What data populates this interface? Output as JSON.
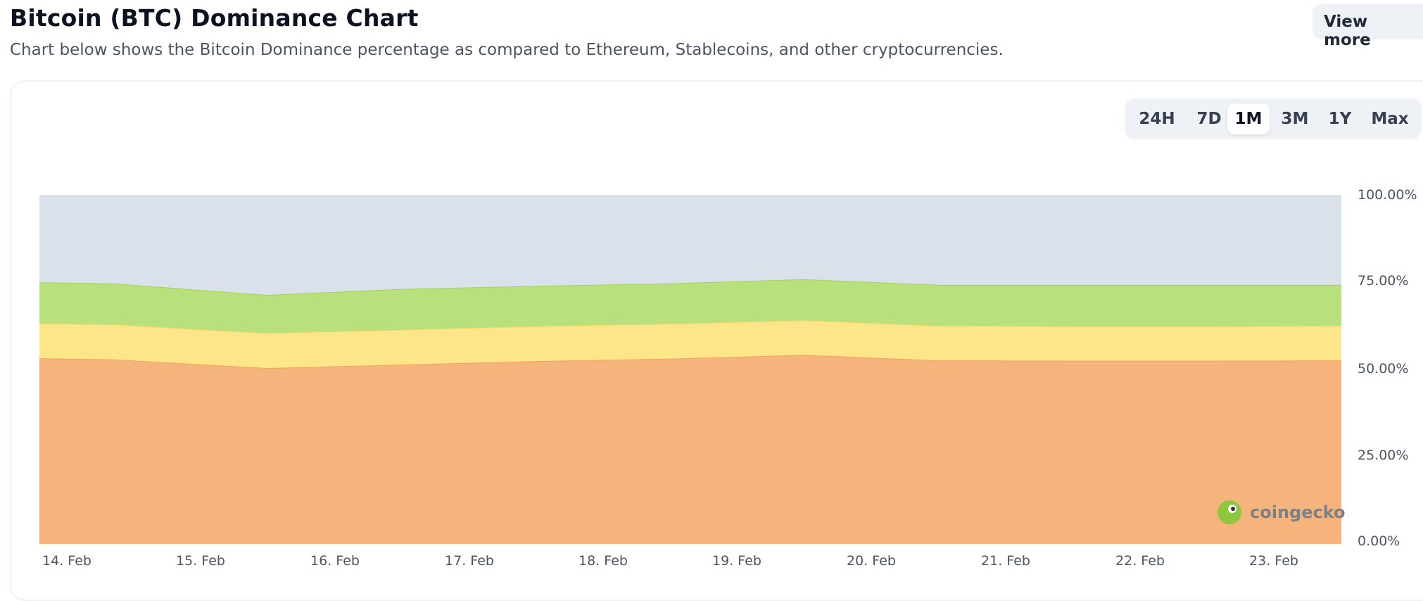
{
  "header": {
    "title": "Bitcoin (BTC) Dominance Chart",
    "subtitle": "Chart below shows the Bitcoin Dominance percentage as compared to Ethereum, Stablecoins, and other cryptocurrencies.",
    "view_more_label": "View more",
    "view_more_icon": "external-link-icon"
  },
  "range_selector": {
    "options": [
      "24H",
      "7D",
      "1M",
      "3M",
      "1Y",
      "Max"
    ],
    "selected": "1M"
  },
  "watermark": {
    "text": "coingecko",
    "icon": "coingecko-logo-icon"
  },
  "chart_data": {
    "type": "area",
    "stacked": true,
    "x_tick_labels": [
      "14. Feb",
      "15. Feb",
      "16. Feb",
      "17. Feb",
      "18. Feb",
      "19. Feb",
      "20. Feb",
      "21. Feb",
      "22. Feb",
      "23. Feb"
    ],
    "x_range": [
      "14. Feb",
      "23. Feb"
    ],
    "x": [
      "14. Feb",
      "14. Feb",
      "15. Feb",
      "16. Feb",
      "17. Feb",
      "18. Feb",
      "19. Feb",
      "20. Feb",
      "21. Feb",
      "22. Feb",
      "23. Feb",
      "23. Feb"
    ],
    "y_tick_labels": [
      "0.00%",
      "25.00%",
      "50.00%",
      "75.00%",
      "100.00%"
    ],
    "ylim": [
      0,
      100
    ],
    "grid": false,
    "legend": "none",
    "series": [
      {
        "color": "#f4b47c",
        "line_color": "#f2a35f",
        "values": [
          53.3,
          53.0,
          50.5,
          51.5,
          52.5,
          53.2,
          54.3,
          52.7,
          52.6,
          52.6,
          52.7,
          52.8
        ]
      },
      {
        "color": "#fde68a",
        "line_color": "#f8d96a",
        "values": [
          10.0,
          10.0,
          10.0,
          10.0,
          10.0,
          10.0,
          9.9,
          9.9,
          9.9,
          9.9,
          9.9,
          9.9
        ]
      },
      {
        "color": "#b8e07c",
        "line_color": "#9ed35e",
        "values": [
          11.8,
          11.8,
          11.0,
          11.7,
          11.6,
          11.6,
          11.8,
          11.8,
          11.9,
          11.9,
          11.8,
          11.8
        ]
      },
      {
        "color": "#dbe1ea",
        "line_color": "#dbe1ea",
        "values": [
          24.9,
          25.2,
          28.5,
          26.8,
          25.9,
          25.2,
          24.0,
          25.6,
          25.6,
          25.6,
          25.6,
          25.5
        ]
      }
    ]
  }
}
